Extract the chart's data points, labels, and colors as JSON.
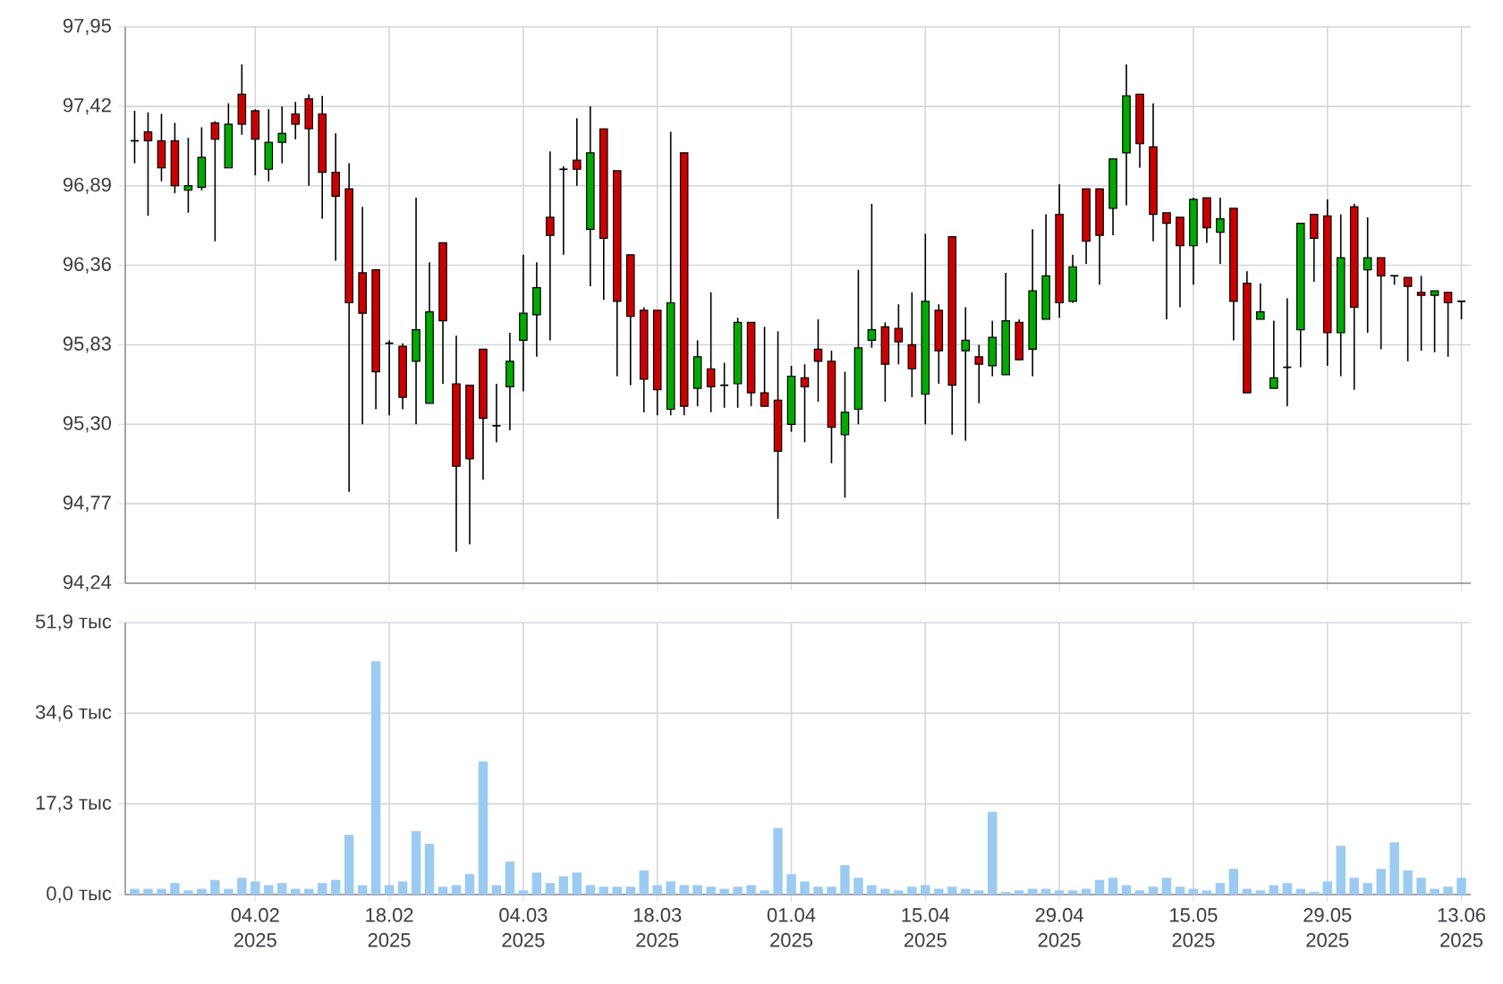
{
  "chart_data": [
    {
      "type": "candlestick",
      "categories": [
        null,
        null,
        null,
        null,
        null,
        null,
        null,
        null,
        null,
        null,
        null,
        null,
        null,
        null,
        null,
        null,
        null,
        null,
        null,
        null,
        null,
        null,
        null,
        null,
        null,
        null,
        null,
        null,
        null,
        null,
        null,
        null,
        null,
        null,
        null,
        null,
        null,
        null,
        null,
        null,
        null,
        null,
        null,
        null,
        null,
        null,
        null,
        null,
        null,
        null,
        null,
        null,
        null,
        null,
        null,
        null,
        null,
        null,
        null,
        null,
        null,
        null,
        null,
        null,
        null,
        null,
        null,
        null,
        null,
        null,
        null,
        null,
        null,
        null,
        null,
        null,
        null,
        null,
        null,
        null,
        null,
        null,
        null,
        null,
        null,
        null,
        null,
        null,
        null,
        null,
        null,
        null,
        null,
        null,
        null,
        null,
        null,
        null,
        null,
        null
      ],
      "ohlc": [
        [
          97.19,
          97.39,
          97.04,
          97.19
        ],
        [
          97.25,
          97.38,
          96.69,
          97.19
        ],
        [
          97.19,
          97.37,
          96.92,
          97.01
        ],
        [
          97.19,
          97.31,
          96.84,
          96.89
        ],
        [
          96.86,
          97.21,
          96.71,
          96.89
        ],
        [
          96.88,
          97.28,
          96.86,
          97.08
        ],
        [
          97.31,
          97.32,
          96.52,
          97.2
        ],
        [
          97.01,
          97.44,
          97.01,
          97.3
        ],
        [
          97.5,
          97.7,
          97.23,
          97.3
        ],
        [
          97.39,
          97.4,
          96.96,
          97.2
        ],
        [
          97.0,
          97.4,
          96.92,
          97.18
        ],
        [
          97.18,
          97.42,
          97.04,
          97.24
        ],
        [
          97.37,
          97.45,
          97.2,
          97.3
        ],
        [
          97.47,
          97.5,
          96.89,
          97.27
        ],
        [
          97.37,
          97.49,
          96.67,
          96.98
        ],
        [
          96.98,
          97.24,
          96.39,
          96.82
        ],
        [
          96.87,
          97.04,
          94.85,
          96.11
        ],
        [
          96.31,
          96.75,
          95.3,
          96.04
        ],
        [
          96.33,
          96.33,
          95.4,
          95.65
        ],
        [
          95.84,
          95.86,
          95.36,
          95.84
        ],
        [
          95.82,
          95.84,
          95.4,
          95.48
        ],
        [
          95.72,
          96.81,
          95.3,
          95.93
        ],
        [
          95.44,
          96.38,
          95.44,
          96.05
        ],
        [
          96.51,
          96.51,
          95.57,
          95.99
        ],
        [
          95.57,
          95.89,
          94.45,
          95.02
        ],
        [
          95.56,
          95.56,
          94.5,
          95.07
        ],
        [
          95.8,
          95.8,
          94.93,
          95.34
        ],
        [
          95.29,
          95.57,
          95.18,
          95.29
        ],
        [
          95.55,
          95.91,
          95.26,
          95.72
        ],
        [
          95.86,
          96.43,
          95.52,
          96.04
        ],
        [
          96.03,
          96.38,
          95.75,
          96.21
        ],
        [
          96.68,
          97.12,
          95.86,
          96.56
        ],
        [
          97.0,
          97.02,
          96.43,
          97.0
        ],
        [
          97.06,
          97.34,
          96.89,
          97.0
        ],
        [
          96.6,
          97.42,
          96.22,
          97.11
        ],
        [
          97.27,
          97.27,
          96.13,
          96.54
        ],
        [
          96.99,
          96.99,
          95.62,
          96.12
        ],
        [
          96.43,
          96.43,
          95.56,
          96.02
        ],
        [
          96.06,
          96.08,
          95.38,
          95.6
        ],
        [
          96.06,
          96.06,
          95.36,
          95.53
        ],
        [
          95.4,
          97.25,
          95.36,
          96.11
        ],
        [
          97.11,
          97.11,
          95.36,
          95.42
        ],
        [
          95.54,
          95.86,
          95.42,
          95.75
        ],
        [
          95.67,
          96.18,
          95.38,
          95.55
        ],
        [
          95.56,
          95.71,
          95.41,
          95.56
        ],
        [
          95.57,
          96.01,
          95.41,
          95.98
        ],
        [
          95.98,
          95.98,
          95.42,
          95.51
        ],
        [
          95.51,
          95.95,
          95.42,
          95.42
        ],
        [
          95.46,
          95.92,
          94.67,
          95.12
        ],
        [
          95.3,
          95.69,
          95.25,
          95.62
        ],
        [
          95.61,
          95.7,
          95.18,
          95.55
        ],
        [
          95.8,
          96.0,
          95.45,
          95.72
        ],
        [
          95.72,
          95.79,
          95.04,
          95.28
        ],
        [
          95.23,
          95.65,
          94.81,
          95.38
        ],
        [
          95.4,
          96.33,
          95.3,
          95.81
        ],
        [
          95.86,
          96.77,
          95.81,
          95.93
        ],
        [
          95.95,
          95.98,
          95.45,
          95.7
        ],
        [
          95.94,
          96.1,
          95.7,
          95.85
        ],
        [
          95.83,
          96.18,
          95.48,
          95.67
        ],
        [
          95.5,
          96.57,
          95.3,
          96.12
        ],
        [
          96.06,
          96.1,
          95.57,
          95.79
        ],
        [
          96.55,
          96.55,
          95.23,
          95.56
        ],
        [
          95.79,
          96.08,
          95.19,
          95.86
        ],
        [
          95.75,
          95.83,
          95.44,
          95.7
        ],
        [
          95.69,
          95.99,
          95.62,
          95.88
        ],
        [
          95.63,
          96.31,
          95.63,
          95.99
        ],
        [
          95.98,
          96.0,
          95.73,
          95.73
        ],
        [
          95.8,
          96.6,
          95.62,
          96.19
        ],
        [
          96.0,
          96.7,
          96.0,
          96.29
        ],
        [
          96.7,
          96.9,
          96.01,
          96.11
        ],
        [
          96.12,
          96.43,
          96.11,
          96.35
        ],
        [
          96.87,
          96.87,
          96.37,
          96.52
        ],
        [
          96.87,
          96.87,
          96.23,
          96.56
        ],
        [
          96.74,
          97.07,
          96.56,
          97.07
        ],
        [
          97.11,
          97.7,
          96.76,
          97.49
        ],
        [
          97.5,
          97.5,
          97.01,
          97.17
        ],
        [
          97.15,
          97.44,
          96.52,
          96.7
        ],
        [
          96.71,
          96.71,
          96.0,
          96.64
        ],
        [
          96.68,
          96.68,
          96.08,
          96.49
        ],
        [
          96.49,
          96.81,
          96.23,
          96.8
        ],
        [
          96.81,
          96.81,
          96.51,
          96.61
        ],
        [
          96.58,
          96.81,
          96.37,
          96.67
        ],
        [
          96.74,
          96.74,
          95.86,
          96.12
        ],
        [
          96.24,
          96.32,
          95.51,
          95.51
        ],
        [
          96.0,
          96.24,
          96.0,
          96.05
        ],
        [
          95.54,
          95.99,
          95.54,
          95.61
        ],
        [
          95.68,
          96.14,
          95.42,
          95.68
        ],
        [
          95.93,
          96.64,
          95.68,
          96.64
        ],
        [
          96.7,
          96.7,
          96.25,
          96.54
        ],
        [
          96.69,
          96.8,
          95.69,
          95.91
        ],
        [
          95.91,
          96.7,
          95.62,
          96.41
        ],
        [
          96.75,
          96.77,
          95.53,
          96.08
        ],
        [
          96.33,
          96.68,
          95.91,
          96.41
        ],
        [
          96.41,
          96.41,
          95.8,
          96.29
        ],
        [
          96.29,
          96.29,
          96.23,
          96.29
        ],
        [
          96.28,
          96.28,
          95.72,
          96.22
        ],
        [
          96.18,
          96.29,
          95.79,
          96.16
        ],
        [
          96.16,
          96.19,
          95.78,
          96.19
        ],
        [
          96.18,
          96.18,
          95.75,
          96.11
        ],
        [
          96.12,
          96.12,
          96.0,
          96.12
        ]
      ],
      "colors": [
        "#000000",
        "#cc0000",
        "#cc0000",
        "#cc0000",
        "#00aa00",
        "#00aa00",
        "#cc0000",
        "#00aa00",
        "#cc0000",
        "#cc0000",
        "#00aa00",
        "#00aa00",
        "#cc0000",
        "#cc0000",
        "#cc0000",
        "#cc0000",
        "#cc0000",
        "#cc0000",
        "#cc0000",
        "#000000",
        "#cc0000",
        "#00aa00",
        "#00aa00",
        "#cc0000",
        "#cc0000",
        "#cc0000",
        "#cc0000",
        "#000000",
        "#00aa00",
        "#00aa00",
        "#00aa00",
        "#cc0000",
        "#000000",
        "#cc0000",
        "#00aa00",
        "#cc0000",
        "#cc0000",
        "#cc0000",
        "#cc0000",
        "#cc0000",
        "#00aa00",
        "#cc0000",
        "#00aa00",
        "#cc0000",
        "#000000",
        "#00aa00",
        "#cc0000",
        "#cc0000",
        "#cc0000",
        "#00aa00",
        "#cc0000",
        "#cc0000",
        "#cc0000",
        "#00aa00",
        "#00aa00",
        "#00aa00",
        "#cc0000",
        "#cc0000",
        "#cc0000",
        "#00aa00",
        "#cc0000",
        "#cc0000",
        "#00aa00",
        "#cc0000",
        "#00aa00",
        "#00aa00",
        "#cc0000",
        "#00aa00",
        "#00aa00",
        "#cc0000",
        "#00aa00",
        "#cc0000",
        "#cc0000",
        "#00aa00",
        "#00aa00",
        "#cc0000",
        "#cc0000",
        "#cc0000",
        "#cc0000",
        "#00aa00",
        "#cc0000",
        "#00aa00",
        "#cc0000",
        "#cc0000",
        "#00aa00",
        "#00aa00",
        "#000000",
        "#00aa00",
        "#cc0000",
        "#cc0000",
        "#00aa00",
        "#cc0000",
        "#00aa00",
        "#cc0000",
        "#000000",
        "#cc0000",
        "#cc0000",
        "#00aa00",
        "#cc0000",
        "#000000"
      ],
      "ylim": [
        94.24,
        97.95
      ],
      "yticks": [
        {
          "value": 94.24,
          "label": "94,24"
        },
        {
          "value": 94.77,
          "label": "94,77"
        },
        {
          "value": 95.3,
          "label": "95,30"
        },
        {
          "value": 95.83,
          "label": "95,83"
        },
        {
          "value": 96.36,
          "label": "96,36"
        },
        {
          "value": 96.89,
          "label": "96,89"
        },
        {
          "value": 97.42,
          "label": "97,42"
        },
        {
          "value": 97.95,
          "label": "97,95"
        }
      ],
      "grid": true,
      "tick_labels": "y"
    },
    {
      "type": "bar",
      "categories": [
        null,
        null,
        null,
        null,
        null,
        null,
        null,
        null,
        null,
        "04.02 2025",
        null,
        null,
        null,
        null,
        null,
        null,
        null,
        null,
        null,
        "18.02 2025",
        null,
        null,
        null,
        null,
        null,
        null,
        null,
        null,
        null,
        "04.03 2025",
        null,
        null,
        null,
        null,
        null,
        null,
        null,
        null,
        null,
        "18.03 2025",
        null,
        null,
        null,
        null,
        null,
        null,
        null,
        null,
        null,
        "01.04 2025",
        null,
        null,
        null,
        null,
        null,
        null,
        null,
        null,
        null,
        "15.04 2025",
        null,
        null,
        null,
        null,
        null,
        null,
        null,
        null,
        null,
        "29.04 2025",
        null,
        null,
        null,
        null,
        null,
        null,
        null,
        null,
        null,
        "15.05 2025",
        null,
        null,
        null,
        null,
        null,
        null,
        null,
        null,
        null,
        "29.05 2025",
        null,
        null,
        null,
        null,
        null,
        null,
        null,
        null,
        null,
        "13.06 2025"
      ],
      "color": "#9ccbf2",
      "values": [
        1.1,
        1.1,
        1.1,
        2.2,
        0.8,
        1.1,
        2.8,
        1.1,
        3.2,
        2.5,
        1.8,
        2.2,
        1.1,
        1.1,
        2.2,
        2.8,
        11.4,
        1.8,
        44.5,
        1.8,
        2.5,
        12.1,
        9.7,
        1.5,
        1.8,
        3.9,
        25.4,
        1.8,
        6.3,
        0.8,
        4.2,
        2.2,
        3.5,
        4.2,
        1.8,
        1.5,
        1.5,
        1.5,
        4.6,
        1.8,
        2.5,
        1.8,
        1.8,
        1.5,
        1.1,
        1.5,
        1.8,
        0.8,
        12.7,
        3.9,
        2.5,
        1.5,
        1.5,
        5.6,
        3.2,
        1.8,
        1.1,
        0.8,
        1.5,
        1.8,
        1.1,
        1.5,
        1.1,
        0.8,
        15.8,
        0.5,
        0.8,
        1.1,
        1.1,
        0.8,
        0.8,
        1.1,
        2.8,
        3.2,
        1.8,
        0.8,
        1.5,
        3.2,
        1.5,
        1.1,
        0.8,
        2.2,
        4.9,
        1.1,
        0.8,
        1.8,
        2.2,
        1.1,
        0.5,
        2.5,
        9.3,
        3.2,
        2.2,
        4.9,
        10.0,
        4.6,
        3.2,
        1.1,
        1.5,
        3.2
      ],
      "ylim": [
        0,
        51.9
      ],
      "yticks": [
        {
          "value": 0,
          "label": "0,0 тыс"
        },
        {
          "value": 17.3,
          "label": "17,3 тыс"
        },
        {
          "value": 34.6,
          "label": "34,6 тыс"
        },
        {
          "value": 51.9,
          "label": "51,9 тыс"
        }
      ],
      "grid": true
    }
  ]
}
